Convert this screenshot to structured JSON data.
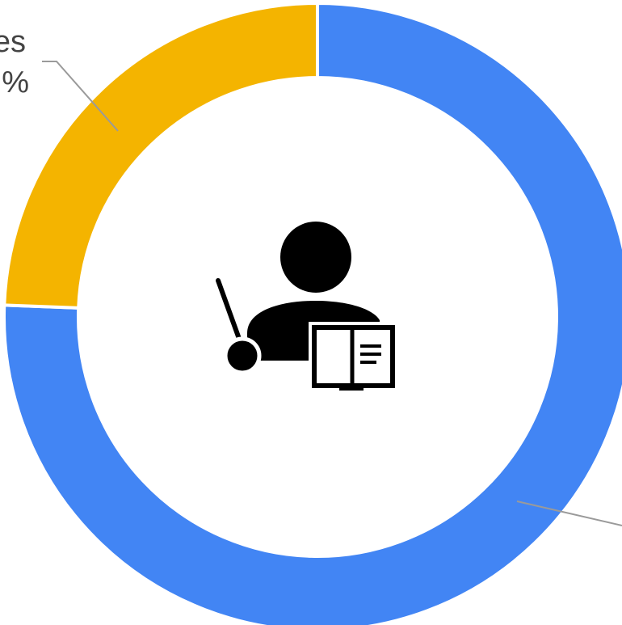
{
  "chart_data": {
    "type": "pie",
    "donut": true,
    "slices": [
      {
        "color": "#4285F4",
        "percent": 75.6
      },
      {
        "color": "#F4B400",
        "percent": 24.4,
        "label_visible": [
          "es",
          "%"
        ]
      }
    ],
    "legend": "none",
    "center_icon": "teacher-with-pointer-and-book-icon"
  }
}
